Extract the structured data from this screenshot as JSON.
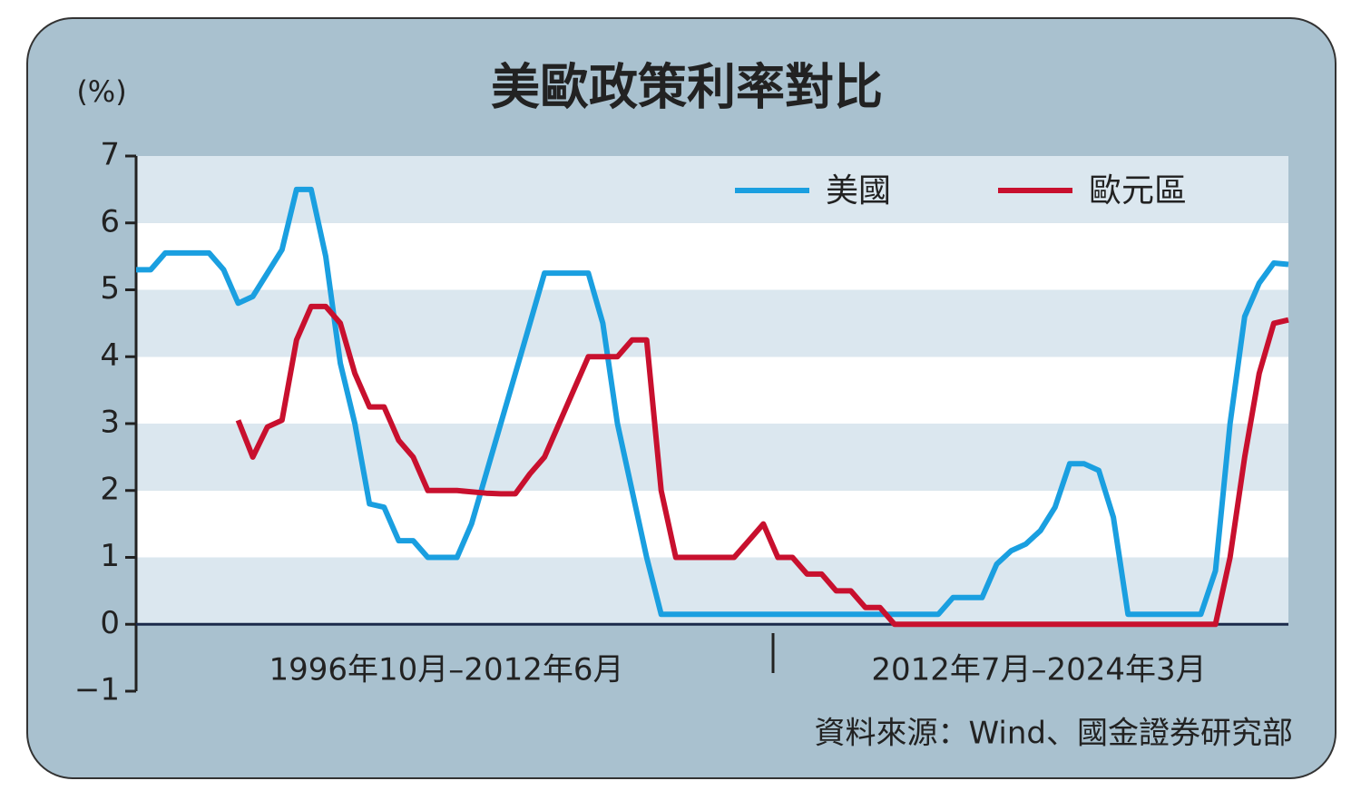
{
  "chart_data": {
    "type": "line",
    "title": "美歐政策利率對比",
    "y_label": "(%)",
    "annotations": [
      "1996年10月–2012年6月",
      "2012年7月–2024年3月"
    ],
    "source": "資料來源：Wind、國金證券研究部",
    "categories": [
      null,
      null,
      null,
      null,
      null,
      null,
      null,
      null,
      null,
      null,
      null,
      null,
      null,
      null,
      null,
      null,
      null,
      null,
      null,
      null,
      null,
      null,
      null,
      null,
      null,
      null,
      null,
      null,
      null,
      null,
      null,
      null,
      null,
      null,
      null,
      null,
      null,
      null,
      null,
      null,
      null,
      null,
      null,
      null,
      null,
      null,
      null,
      null,
      null,
      null,
      null,
      null,
      null,
      null,
      null,
      null,
      null,
      null,
      null,
      null,
      null,
      null,
      null,
      null,
      null,
      null,
      null,
      null,
      null,
      null,
      null,
      null,
      null,
      null,
      null,
      null,
      null,
      null,
      null,
      null
    ],
    "series": [
      {
        "name": "美國",
        "color": "#1a9fe0",
        "values": [
          5.3,
          5.3,
          5.55,
          5.55,
          5.55,
          5.55,
          5.3,
          4.8,
          4.9,
          5.25,
          5.6,
          6.5,
          6.5,
          5.5,
          3.9,
          3.0,
          1.8,
          1.75,
          1.25,
          1.25,
          1.0,
          1.0,
          1.0,
          1.5,
          2.25,
          3.0,
          3.75,
          4.5,
          5.25,
          5.25,
          5.25,
          5.25,
          4.5,
          3.0,
          2.0,
          1.0,
          0.15,
          0.15,
          0.15,
          0.15,
          0.15,
          0.15,
          0.15,
          0.15,
          0.15,
          0.15,
          0.15,
          0.15,
          0.15,
          0.15,
          0.15,
          0.15,
          0.15,
          0.15,
          0.15,
          0.15,
          0.4,
          0.4,
          0.4,
          0.9,
          1.1,
          1.2,
          1.4,
          1.75,
          2.4,
          2.4,
          2.3,
          1.6,
          0.15,
          0.15,
          0.15,
          0.15,
          0.15,
          0.15,
          0.8,
          3.0,
          4.6,
          5.1,
          5.4,
          5.38
        ]
      },
      {
        "name": "歐元區",
        "color": "#c8102e",
        "values": [
          null,
          null,
          null,
          null,
          null,
          null,
          null,
          3.05,
          2.5,
          2.95,
          3.05,
          4.25,
          4.75,
          4.75,
          4.5,
          3.75,
          3.25,
          3.25,
          2.75,
          2.5,
          2.0,
          2.0,
          2.0,
          1.98,
          1.96,
          1.95,
          1.95,
          2.25,
          2.5,
          3.0,
          3.5,
          4.0,
          4.0,
          4.0,
          4.25,
          4.25,
          2.0,
          1.0,
          1.0,
          1.0,
          1.0,
          1.0,
          1.25,
          1.5,
          1.0,
          1.0,
          0.75,
          0.75,
          0.5,
          0.5,
          0.25,
          0.25,
          0,
          0,
          0,
          0,
          0,
          0,
          0,
          0,
          0,
          0,
          0,
          0,
          0,
          0,
          0,
          0,
          0,
          0,
          0,
          0,
          0,
          0,
          0,
          1.0,
          2.5,
          3.75,
          4.5,
          4.55
        ]
      }
    ],
    "ylim": [
      -1,
      7
    ],
    "yticks": [
      {
        "value": -1,
        "label": "−1"
      },
      0,
      1,
      2,
      3,
      4,
      5,
      6,
      7
    ],
    "grid": true,
    "legend": "top-right"
  }
}
